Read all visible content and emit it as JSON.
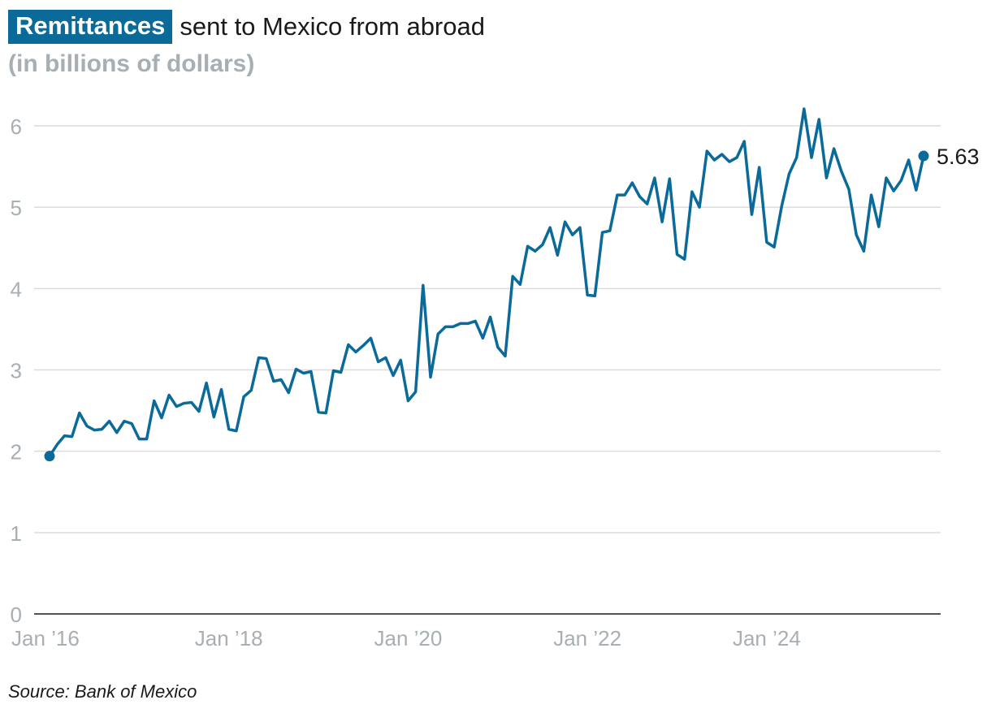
{
  "header": {
    "title_highlight": "Remittances",
    "title_rest": "sent to Mexico from abroad",
    "subtitle": "(in billions of dollars)"
  },
  "footer": {
    "source": "Source: Bank of Mexico"
  },
  "chart_data": {
    "type": "line",
    "title": "Remittances sent to Mexico from abroad",
    "subtitle": "(in billions of dollars)",
    "ylim": [
      0,
      6
    ],
    "y_ticks": [
      0,
      1,
      2,
      3,
      4,
      5,
      6
    ],
    "x_ticks": [
      {
        "label": "Jan ’16",
        "index": 0
      },
      {
        "label": "Jan ’18",
        "index": 24
      },
      {
        "label": "Jan ’20",
        "index": 48
      },
      {
        "label": "Jan ’22",
        "index": 72
      },
      {
        "label": "Jan ’24",
        "index": 96
      }
    ],
    "grid": true,
    "color": "#0a6a9a",
    "end_label": "5.63",
    "series": [
      {
        "start": "2016-01",
        "frequency": "monthly",
        "values": [
          1.94,
          2.08,
          2.19,
          2.18,
          2.47,
          2.31,
          2.26,
          2.27,
          2.37,
          2.23,
          2.37,
          2.34,
          2.15,
          2.15,
          2.62,
          2.41,
          2.69,
          2.55,
          2.59,
          2.6,
          2.49,
          2.84,
          2.42,
          2.76,
          2.27,
          2.25,
          2.67,
          2.75,
          3.15,
          3.14,
          2.86,
          2.88,
          2.72,
          3.01,
          2.96,
          2.98,
          2.48,
          2.47,
          2.99,
          2.97,
          3.31,
          3.22,
          3.3,
          3.39,
          3.1,
          3.15,
          2.93,
          3.12,
          2.62,
          2.73,
          4.04,
          2.91,
          3.44,
          3.53,
          3.53,
          3.57,
          3.57,
          3.6,
          3.39,
          3.65,
          3.28,
          3.17,
          4.15,
          4.05,
          4.52,
          4.46,
          4.54,
          4.75,
          4.41,
          4.82,
          4.66,
          4.75,
          3.92,
          3.91,
          4.69,
          4.71,
          5.15,
          5.15,
          5.3,
          5.13,
          5.04,
          5.36,
          4.82,
          5.35,
          4.42,
          4.36,
          5.19,
          5.0,
          5.69,
          5.58,
          5.65,
          5.56,
          5.61,
          5.81,
          4.91,
          5.49,
          4.57,
          4.51,
          5.01,
          5.41,
          5.61,
          6.21,
          5.61,
          6.08,
          5.36,
          5.72,
          5.44,
          5.22,
          4.66,
          4.46,
          5.15,
          4.76,
          5.36,
          5.2,
          5.33,
          5.58,
          5.21,
          5.63
        ]
      }
    ]
  }
}
